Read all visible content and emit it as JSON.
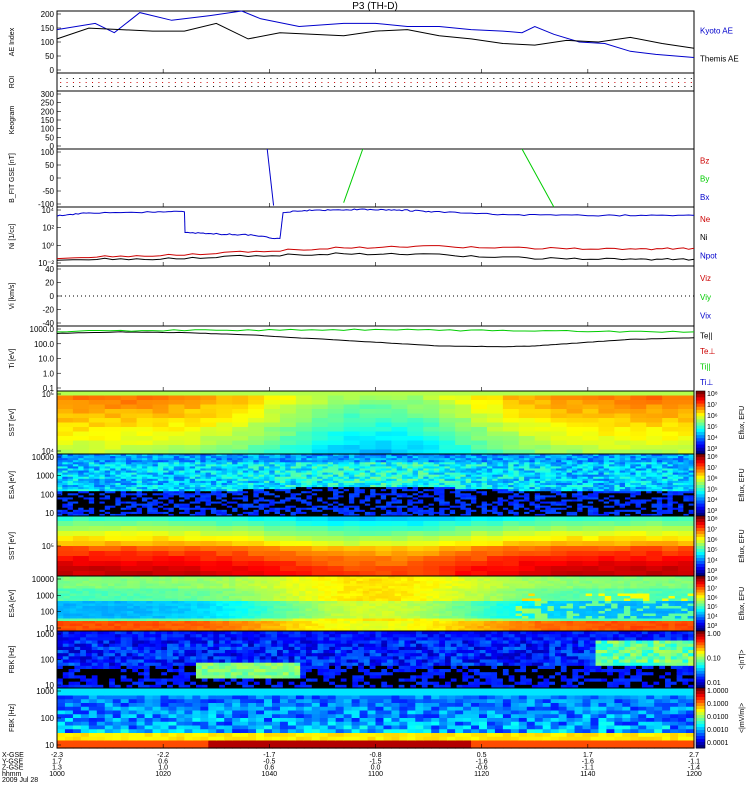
{
  "title": "P3 (TH-D)",
  "colors": {
    "blue": "#0000cc",
    "green": "#00cc00",
    "red": "#cc0000",
    "black": "#000000"
  },
  "chart_data": [
    {
      "type": "line",
      "panel": "ae",
      "ylabel": "AE Index",
      "ylim": [
        0,
        200
      ],
      "yticks": [
        "200",
        "150",
        "100",
        "50",
        "0"
      ],
      "series": [
        {
          "name": "Kyoto AE",
          "color": "blue",
          "x": [
            0,
            6,
            9,
            13,
            18,
            24,
            29,
            32,
            38,
            45,
            50,
            55,
            60,
            65,
            70,
            73,
            75,
            78,
            82,
            86,
            90,
            94,
            100
          ],
          "y": [
            140,
            160,
            130,
            195,
            170,
            185,
            200,
            175,
            150,
            160,
            160,
            150,
            150,
            140,
            135,
            130,
            150,
            125,
            100,
            95,
            70,
            60,
            50
          ]
        },
        {
          "name": "Themis AE",
          "color": "black",
          "x": [
            0,
            5,
            10,
            15,
            20,
            25,
            30,
            35,
            40,
            45,
            50,
            55,
            60,
            65,
            70,
            75,
            80,
            85,
            90,
            95,
            100
          ],
          "y": [
            110,
            145,
            140,
            135,
            135,
            160,
            110,
            130,
            125,
            120,
            135,
            140,
            120,
            110,
            95,
            90,
            105,
            100,
            115,
            95,
            80
          ]
        }
      ]
    },
    {
      "type": "line",
      "panel": "roi",
      "ylabel": "ROI",
      "series": []
    },
    {
      "type": "line",
      "panel": "keogram",
      "ylabel": "Keogram",
      "ylim": [
        0,
        300
      ],
      "yticks": [
        "300",
        "250",
        "200",
        "150",
        "100",
        "50",
        "0"
      ],
      "series": []
    },
    {
      "type": "line",
      "panel": "bfit",
      "ylabel": "B_FIT GSE [nT]",
      "ylim": [
        -100,
        100
      ],
      "yticks": [
        "100",
        "50",
        "0",
        "-50",
        "-100"
      ],
      "series": [
        {
          "name": "Bz",
          "color": "red",
          "segments": []
        },
        {
          "name": "By",
          "color": "green",
          "segments": [
            [
              [
                45,
                -85
              ],
              [
                48,
                100
              ]
            ],
            [
              [
                73,
                100
              ],
              [
                78,
                -100
              ]
            ]
          ]
        },
        {
          "name": "Bx",
          "color": "blue",
          "segments": [
            [
              [
                33,
                100
              ],
              [
                34,
                -95
              ]
            ]
          ]
        }
      ]
    },
    {
      "type": "line",
      "panel": "density",
      "ylabel": "Ni [1/cc]",
      "ylog": true,
      "ylim": [
        -2,
        5
      ],
      "yticks": [
        "10⁴",
        "10²",
        "10⁰",
        "10⁻²"
      ],
      "series": [
        {
          "name": "Ne",
          "color": "red",
          "x": [
            0,
            15,
            30,
            45,
            60,
            75,
            90,
            100
          ],
          "y": [
            -1.0,
            -0.8,
            -0.3,
            0.2,
            0.3,
            0.1,
            0.0,
            0.1
          ]
        },
        {
          "name": "Ni",
          "color": "black",
          "x": [
            0,
            15,
            30,
            45,
            60,
            75,
            90,
            100
          ],
          "y": [
            -1.2,
            -1.2,
            -0.8,
            -0.5,
            -0.7,
            -1.1,
            -1.2,
            -1.2
          ]
        },
        {
          "name": "Npot",
          "color": "blue",
          "x": [
            0,
            5,
            15,
            20,
            20.1,
            25,
            30,
            35,
            35.5,
            40,
            45,
            50,
            55,
            60,
            70,
            80,
            90,
            100
          ],
          "y": [
            4.0,
            4.3,
            4.4,
            4.5,
            2.0,
            1.8,
            1.7,
            1.2,
            4.4,
            4.6,
            4.7,
            4.7,
            4.6,
            4.4,
            4.1,
            4.0,
            4.0,
            4.0
          ]
        }
      ]
    },
    {
      "type": "line",
      "panel": "velocity",
      "ylabel": "Vi [km/s]",
      "ylim": [
        -50,
        50
      ],
      "yticks": [
        "40",
        "20",
        "0",
        "-20",
        "-40"
      ],
      "series": [
        {
          "name": "Viz",
          "color": "red"
        },
        {
          "name": "Viy",
          "color": "green"
        },
        {
          "name": "Vix",
          "color": "blue"
        }
      ]
    },
    {
      "type": "line",
      "panel": "temperature",
      "ylabel": "Ti [eV]",
      "ylog": true,
      "ylim": [
        -1,
        3.4
      ],
      "yticks": [
        "1000.0",
        "100.0",
        "10.0",
        "1.0",
        "0.1"
      ],
      "series": [
        {
          "name": "Te||",
          "color": "black",
          "x": [
            0,
            10,
            20,
            30,
            40,
            50,
            60,
            70,
            75,
            80,
            90,
            100
          ],
          "y": [
            2.9,
            3.0,
            2.95,
            2.8,
            2.55,
            2.3,
            2.05,
            2.0,
            2.05,
            2.2,
            2.5,
            2.6
          ]
        },
        {
          "name": "Te⊥",
          "color": "red"
        },
        {
          "name": "Ti||",
          "color": "green",
          "x": [
            0,
            20,
            40,
            60,
            80,
            100
          ],
          "y": [
            3.05,
            3.1,
            3.15,
            3.12,
            3.05,
            3.0
          ]
        },
        {
          "name": "Ti⊥",
          "color": "blue"
        }
      ]
    },
    {
      "type": "heatmap",
      "panel": "sst1",
      "ylabel": "SST [eV]",
      "yticks": [
        "10⁵",
        "10⁴"
      ],
      "colorbar": "Eflux, EFU",
      "cbticks": [
        "10⁸",
        "10⁷",
        "10⁶",
        "10⁵",
        "10⁴",
        "10³"
      ]
    },
    {
      "type": "heatmap",
      "panel": "esa1",
      "ylabel": "ESA [eV]",
      "yticks": [
        "10000",
        "1000",
        "100",
        "10"
      ],
      "colorbar": "Eflux, EFU",
      "cbticks": [
        "10⁸",
        "10⁷",
        "10⁶",
        "10⁵",
        "10⁴",
        "10³"
      ]
    },
    {
      "type": "heatmap",
      "panel": "sst2",
      "ylabel": "SST [eV]",
      "yticks": [
        "10⁵"
      ],
      "colorbar": "Eflux, EFU",
      "cbticks": [
        "10⁸",
        "10⁷",
        "10⁶",
        "10⁵",
        "10⁴",
        "10³"
      ]
    },
    {
      "type": "heatmap",
      "panel": "esa2",
      "ylabel": "ESA [eV]",
      "yticks": [
        "10000",
        "1000",
        "100",
        "10"
      ],
      "colorbar": "Eflux, EFU",
      "cbticks": [
        "10⁸",
        "10⁷",
        "10⁶",
        "10⁵",
        "10⁴",
        "10³"
      ]
    },
    {
      "type": "heatmap",
      "panel": "fbk1",
      "ylabel": "FBK [Hz]",
      "yticks": [
        "1000",
        "100",
        "10"
      ],
      "colorbar": "<|nT|>",
      "cbticks": [
        "1.00",
        "0.10",
        "0.01"
      ]
    },
    {
      "type": "heatmap",
      "panel": "fbk2",
      "ylabel": "FBK [Hz]",
      "yticks": [
        "1000",
        "100",
        "10"
      ],
      "colorbar": "<|mV/m|>",
      "cbticks": [
        "1.0000",
        "0.1000",
        "0.0100",
        "0.0010",
        "0.0001"
      ]
    }
  ],
  "axis_rows": [
    {
      "label": "X-GSE",
      "values": [
        "-2.3",
        "-2.2",
        "-1.7",
        "-0.8",
        "0.5",
        "1.7",
        "2.7"
      ]
    },
    {
      "label": "Y-GSE",
      "values": [
        "1.7",
        "0.6",
        "-0.5",
        "-1.5",
        "-1.6",
        "-1.6",
        "-1.1"
      ]
    },
    {
      "label": "Z-GSE",
      "values": [
        "1.3",
        "1.0",
        "0.6",
        "0.0",
        "-0.6",
        "-1.1",
        "-1.4"
      ]
    },
    {
      "label": "hhmm",
      "values": [
        "1000",
        "1020",
        "1040",
        "1100",
        "1120",
        "1140",
        "1200"
      ]
    },
    {
      "label": "2009 Jul 28",
      "values": []
    }
  ]
}
